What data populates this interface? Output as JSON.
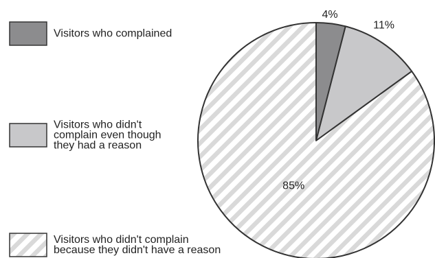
{
  "chart_data": {
    "type": "pie",
    "title": "",
    "start_angle_deg": 0,
    "direction": "clockwise",
    "slices": [
      {
        "legend_lines": [
          "Visitors who complained"
        ],
        "value": 4,
        "label": "4%",
        "fill": "#8c8c8e",
        "pattern": "solid"
      },
      {
        "legend_lines": [
          "Visitors who didn't",
          "complain even though",
          "they had a reason"
        ],
        "value": 11,
        "label": "11%",
        "fill": "#c8c8ca",
        "pattern": "solid"
      },
      {
        "legend_lines": [
          "Visitors who didn't complain",
          "because they didn't have a reason"
        ],
        "value": 85,
        "label": "85%",
        "fill": "#ffffff",
        "stripe_color": "#d9d9d9",
        "pattern": "diagonal-stripes"
      }
    ],
    "stroke_color": "#333333",
    "legend_placement": "left"
  }
}
